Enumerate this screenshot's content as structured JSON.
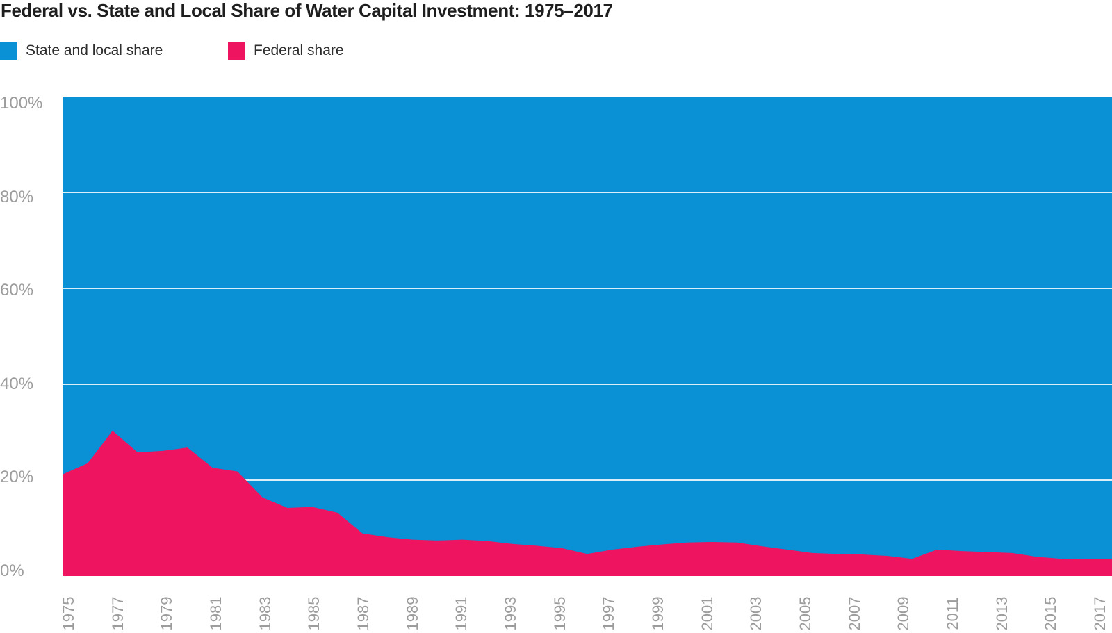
{
  "page": {
    "background": "#FFFFFF"
  },
  "header": {
    "title": "Federal vs. State and Local Share of Water Capital Investment: 1975–2017"
  },
  "legend": {
    "items": [
      {
        "label": "State and local share",
        "color": "#0A90D4"
      },
      {
        "label": "Federal share",
        "color": "#EE145F"
      }
    ]
  },
  "chart_data": {
    "type": "area",
    "subtype": "100-percent-stacked",
    "title": "Federal vs. State and Local Share of Water Capital Investment: 1975–2017",
    "xlabel": "",
    "ylabel": "",
    "ylim": [
      0,
      100
    ],
    "grid": "horizontal",
    "gridline_values": [
      80,
      60,
      40,
      20
    ],
    "gridline_color": "#FFFFFF",
    "legend_position": "top-left",
    "axis_label_color": "#9C9C9C",
    "x": [
      1975,
      1976,
      1977,
      1978,
      1979,
      1980,
      1981,
      1982,
      1983,
      1984,
      1985,
      1986,
      1987,
      1988,
      1989,
      1990,
      1991,
      1992,
      1993,
      1994,
      1995,
      1996,
      1997,
      1998,
      1999,
      2000,
      2001,
      2002,
      2003,
      2004,
      2005,
      2006,
      2007,
      2008,
      2009,
      2010,
      2011,
      2012,
      2013,
      2014,
      2015,
      2016,
      2017
    ],
    "series": [
      {
        "name": "State and local share",
        "color": "#0A90D4",
        "values": [
          78.8,
          76.5,
          69.7,
          74.2,
          73.9,
          73.2,
          77.4,
          78.2,
          83.6,
          85.8,
          85.6,
          86.8,
          91.1,
          91.9,
          92.4,
          92.6,
          92.4,
          92.7,
          93.3,
          93.7,
          94.2,
          95.4,
          94.5,
          93.9,
          93.4,
          93.0,
          92.9,
          93.0,
          93.8,
          94.5,
          95.2,
          95.4,
          95.5,
          95.8,
          96.4,
          94.5,
          94.8,
          95.0,
          95.2,
          96.0,
          96.4,
          96.5,
          96.5
        ]
      },
      {
        "name": "Federal share",
        "color": "#EE145F",
        "values": [
          21.2,
          23.5,
          30.3,
          25.8,
          26.1,
          26.8,
          22.6,
          21.8,
          16.4,
          14.2,
          14.4,
          13.2,
          8.9,
          8.1,
          7.6,
          7.4,
          7.6,
          7.3,
          6.7,
          6.3,
          5.8,
          4.6,
          5.5,
          6.1,
          6.6,
          7.0,
          7.1,
          7.0,
          6.2,
          5.5,
          4.8,
          4.6,
          4.5,
          4.2,
          3.6,
          5.5,
          5.2,
          5.0,
          4.8,
          4.0,
          3.6,
          3.5,
          3.5
        ]
      }
    ],
    "y_ticks": [
      {
        "label": "100%",
        "value": 100
      },
      {
        "label": "80%",
        "value": 80
      },
      {
        "label": "60%",
        "value": 60
      },
      {
        "label": "40%",
        "value": 40
      },
      {
        "label": "20%",
        "value": 20
      },
      {
        "label": "0%",
        "value": 0
      }
    ],
    "x_tick_years": [
      1975,
      1977,
      1979,
      1981,
      1983,
      1985,
      1987,
      1989,
      1991,
      1993,
      1995,
      1997,
      1999,
      2001,
      2003,
      2005,
      2007,
      2009,
      2011,
      2013,
      2015,
      2017
    ]
  }
}
